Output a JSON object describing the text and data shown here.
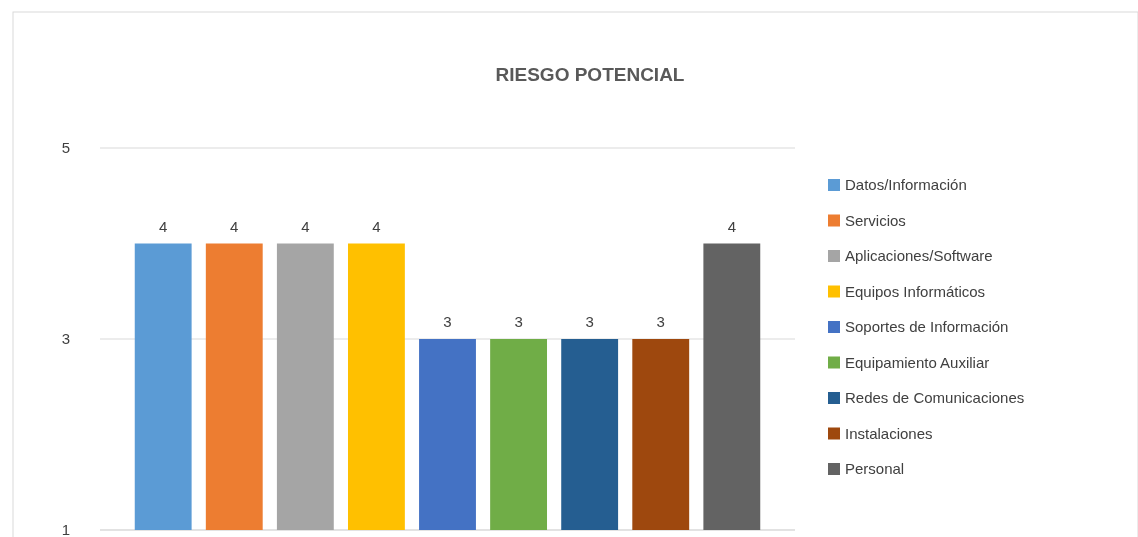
{
  "chart_data": {
    "type": "bar",
    "title": "RIESGO POTENCIAL",
    "categories": [
      null
    ],
    "series": [
      {
        "name": "Datos/Información",
        "color": "#5b9bd5",
        "values": [
          4
        ]
      },
      {
        "name": "Servicios",
        "color": "#ed7d31",
        "values": [
          4
        ]
      },
      {
        "name": "Aplicaciones/Software",
        "color": "#a5a5a5",
        "values": [
          4
        ]
      },
      {
        "name": "Equipos Informáticos",
        "color": "#ffc000",
        "values": [
          4
        ]
      },
      {
        "name": "Soportes de Información",
        "color": "#4472c4",
        "values": [
          3
        ]
      },
      {
        "name": "Equipamiento Auxiliar",
        "color": "#70ad47",
        "values": [
          3
        ]
      },
      {
        "name": "Redes de Comunicaciones",
        "color": "#255e91",
        "values": [
          3
        ]
      },
      {
        "name": "Instalaciones",
        "color": "#9e480e",
        "values": [
          3
        ]
      },
      {
        "name": "Personal",
        "color": "#636363",
        "values": [
          4
        ]
      }
    ],
    "ylim": [
      1,
      5
    ],
    "yticks": [
      1,
      3,
      5
    ],
    "grid": "y",
    "legend": "right",
    "data_labels": true
  }
}
